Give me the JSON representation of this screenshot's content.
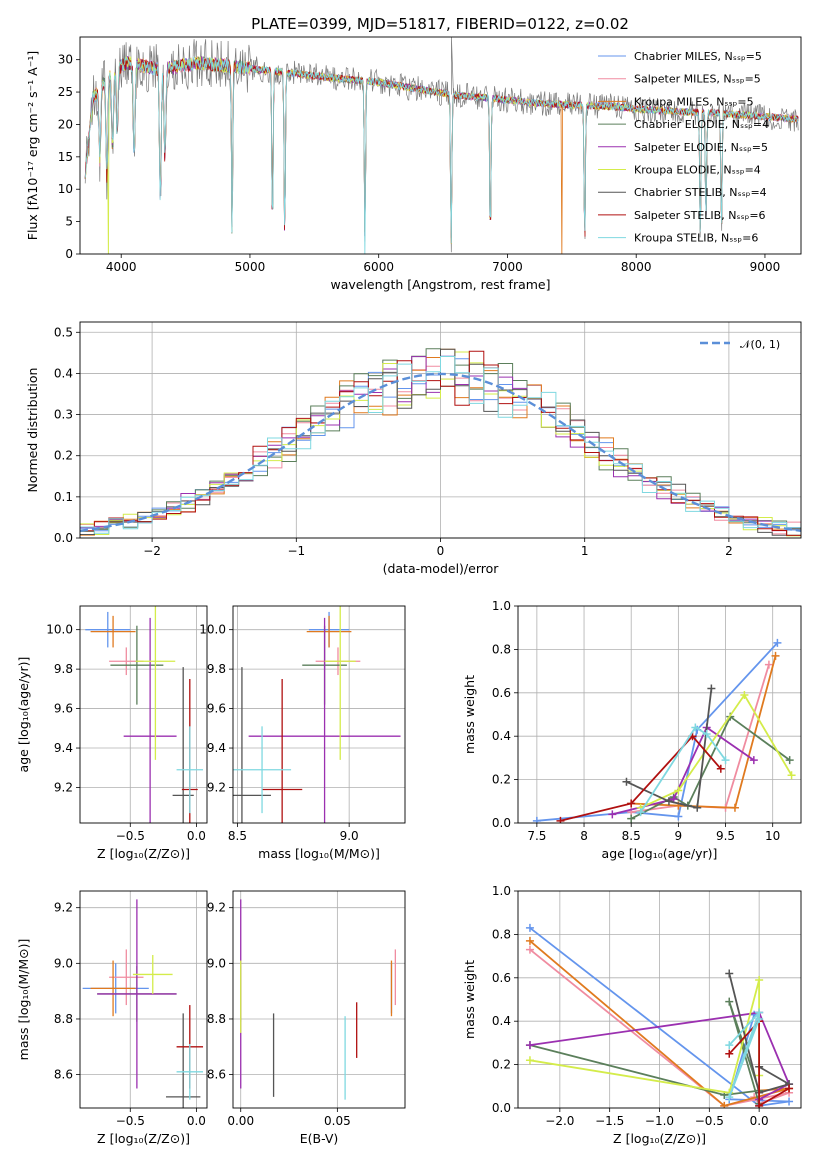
{
  "figure": {
    "title": "PLATE=0399, MJD=51817, FIBERID=0122, z=0.02",
    "models": [
      {
        "name": "Chabrier MILES, Nₛₛₚ=5",
        "color": "#6495ED"
      },
      {
        "name": "Salpeter MILES, Nₛₛₚ=5",
        "color": "#F08CA0"
      },
      {
        "name": "Kroupa MILES, Nₛₛₚ=5",
        "color": "#E07A1F"
      },
      {
        "name": "Chabrier ELODIE, Nₛₛₚ=4",
        "color": "#5B7F5B"
      },
      {
        "name": "Salpeter ELODIE, Nₛₛₚ=5",
        "color": "#9B30B0"
      },
      {
        "name": "Kroupa ELODIE, Nₛₛₚ=4",
        "color": "#D4EC4A"
      },
      {
        "name": "Chabrier STELIB, Nₛₛₚ=4",
        "color": "#555555"
      },
      {
        "name": "Salpeter STELIB, Nₛₛₚ=6",
        "color": "#B01010"
      },
      {
        "name": "Kroupa STELIB, Nₛₛₚ=6",
        "color": "#7FD8E0"
      }
    ]
  },
  "chart_data": [
    {
      "id": "spectrum",
      "type": "line",
      "xlabel": "wavelength [Angstrom, rest frame]",
      "ylabel": "Flux [fλ10⁻¹⁷ erg cm⁻² s⁻¹ A⁻¹]",
      "xlim": [
        3680,
        9280
      ],
      "ylim": [
        0,
        33.5
      ],
      "xticks": [
        4000,
        5000,
        6000,
        7000,
        8000,
        9000
      ],
      "yticks": [
        0,
        5,
        10,
        15,
        20,
        25,
        30
      ],
      "legend_position": "right",
      "continuum": [
        [
          3720,
          12
        ],
        [
          3780,
          24
        ],
        [
          3850,
          26
        ],
        [
          3950,
          28.5
        ],
        [
          4050,
          29.5
        ],
        [
          4300,
          28.5
        ],
        [
          4600,
          29.5
        ],
        [
          4850,
          29
        ],
        [
          5200,
          28.2
        ],
        [
          5600,
          27.3
        ],
        [
          6000,
          26.5
        ],
        [
          6300,
          25.5
        ],
        [
          6600,
          24.5
        ],
        [
          6900,
          24
        ],
        [
          7200,
          23.3
        ],
        [
          7500,
          23
        ],
        [
          7800,
          22.8
        ],
        [
          8000,
          22.4
        ],
        [
          8300,
          22
        ],
        [
          8600,
          21.8
        ],
        [
          9000,
          21.2
        ],
        [
          9260,
          20.8
        ]
      ],
      "absorption": [
        [
          3834,
          11
        ],
        [
          3889,
          15
        ],
        [
          3933,
          12
        ],
        [
          3968,
          10
        ],
        [
          4101,
          14
        ],
        [
          4304,
          20
        ],
        [
          4340,
          14
        ],
        [
          4861,
          25.5
        ],
        [
          5175,
          25
        ],
        [
          5270,
          26
        ],
        [
          5893,
          24
        ],
        [
          6563,
          23
        ],
        [
          6867,
          22
        ],
        [
          7600,
          21.5
        ],
        [
          8498,
          19.5
        ],
        [
          8542,
          17
        ],
        [
          8662,
          18
        ]
      ],
      "drops": [
        {
          "model": 5,
          "x": 3900
        },
        {
          "model": 8,
          "x": 5890
        },
        {
          "model": 5,
          "x": 6790
        },
        {
          "model": 2,
          "x": 7420
        }
      ],
      "spike": {
        "x": 6565,
        "y": 33.5
      }
    },
    {
      "id": "residuals",
      "type": "histogram",
      "xlabel": "(data-model)/error",
      "ylabel": "Normed distribution",
      "xlim": [
        -2.5,
        2.5
      ],
      "ylim": [
        0,
        0.525
      ],
      "xticks": [
        -2,
        -1,
        0,
        1,
        2
      ],
      "yticks": [
        0,
        0.1,
        0.2,
        0.3,
        0.4,
        0.5
      ],
      "bin_width": 0.1,
      "legend": "𝒩(0, 1)",
      "gaussian_color": "#5B8FD8"
    },
    {
      "id": "age-vs-Z",
      "type": "errorbar",
      "xlabel": "Z [log₁₀(Z/Z⊙)]",
      "ylabel": "age  [log₁₀(age/yr)]",
      "xlim": [
        -0.88,
        0.08
      ],
      "ylim": [
        9.02,
        10.12
      ],
      "xticks": [
        -0.5,
        0.0
      ],
      "xticklabels": [
        "−0.5",
        "0.0"
      ],
      "yticks": [
        9.2,
        9.4,
        9.6,
        9.8,
        10.0
      ],
      "points": [
        {
          "m": 0,
          "x": -0.67,
          "xe": 0.17,
          "y": 10.0,
          "ye": 0.09
        },
        {
          "m": 1,
          "x": -0.53,
          "xe": 0.13,
          "y": 9.84,
          "ye": 0.07
        },
        {
          "m": 2,
          "x": -0.63,
          "xe": 0.17,
          "y": 9.99,
          "ye": 0.08
        },
        {
          "m": 3,
          "x": -0.45,
          "xe": 0.2,
          "y": 9.82,
          "ye": 0.2
        },
        {
          "m": 4,
          "x": -0.35,
          "xe": 0.2,
          "y": 9.46,
          "ye": 0.6
        },
        {
          "m": 5,
          "x": -0.31,
          "xe": 0.15,
          "y": 9.84,
          "ye": 0.5
        },
        {
          "m": 6,
          "x": -0.1,
          "xe": 0.08,
          "y": 9.16,
          "ye": 0.65
        },
        {
          "m": 7,
          "x": -0.05,
          "xe": 0.06,
          "y": 9.19,
          "ye": 0.56
        },
        {
          "m": 8,
          "x": -0.05,
          "xe": 0.1,
          "y": 9.29,
          "ye": 0.22
        }
      ]
    },
    {
      "id": "age-vs-mass",
      "type": "errorbar",
      "xlabel": "mass [log₁₀(M/M⊙)]",
      "ylabel": "",
      "xlim": [
        8.48,
        9.25
      ],
      "ylim": [
        9.02,
        10.12
      ],
      "xticks": [
        8.5,
        9.0
      ],
      "xticklabels": [
        "8.5",
        "9.0"
      ],
      "yticks": [
        9.2,
        9.4,
        9.6,
        9.8,
        10.0
      ],
      "points": [
        {
          "m": 0,
          "x": 8.91,
          "xe": 0.09,
          "y": 10.0,
          "ye": 0.09
        },
        {
          "m": 1,
          "x": 8.95,
          "xe": 0.1,
          "y": 9.84,
          "ye": 0.07
        },
        {
          "m": 2,
          "x": 8.91,
          "xe": 0.1,
          "y": 9.99,
          "ye": 0.08
        },
        {
          "m": 3,
          "x": 8.89,
          "xe": 0.1,
          "y": 9.82,
          "ye": 0.2
        },
        {
          "m": 4,
          "x": 8.89,
          "xe": 0.34,
          "y": 9.46,
          "ye": 0.6
        },
        {
          "m": 5,
          "x": 8.96,
          "xe": 0.07,
          "y": 9.84,
          "ye": 0.5
        },
        {
          "m": 6,
          "x": 8.52,
          "xe": 0.13,
          "y": 9.16,
          "ye": 0.65
        },
        {
          "m": 7,
          "x": 8.7,
          "xe": 0.09,
          "y": 9.19,
          "ye": 0.56
        },
        {
          "m": 8,
          "x": 8.61,
          "xe": 0.13,
          "y": 9.29,
          "ye": 0.22
        }
      ]
    },
    {
      "id": "massweight-vs-age",
      "type": "line",
      "xlabel": "age  [log₁₀(age/yr)]",
      "ylabel": "mass weight",
      "xlim": [
        7.3,
        10.3
      ],
      "ylim": [
        0,
        1.0
      ],
      "xticks": [
        7.5,
        8.0,
        8.5,
        9.0,
        9.5,
        10.0
      ],
      "yticks": [
        0,
        0.2,
        0.4,
        0.6,
        0.8,
        1.0
      ],
      "series": [
        {
          "m": 0,
          "x": [
            7.5,
            8.5,
            9.0,
            9.2,
            10.05
          ],
          "y": [
            0.01,
            0.05,
            0.03,
            0.43,
            0.83
          ]
        },
        {
          "m": 1,
          "x": [
            8.5,
            9.0,
            9.5,
            9.96
          ],
          "y": [
            0.05,
            0.08,
            0.07,
            0.73
          ]
        },
        {
          "m": 2,
          "x": [
            8.5,
            9.0,
            9.6,
            10.03
          ],
          "y": [
            0.09,
            0.08,
            0.07,
            0.77
          ]
        },
        {
          "m": 3,
          "x": [
            8.5,
            8.95,
            9.1,
            9.55,
            10.18
          ],
          "y": [
            0.02,
            0.12,
            0.08,
            0.49,
            0.29
          ]
        },
        {
          "m": 4,
          "x": [
            8.3,
            8.95,
            9.3,
            9.8
          ],
          "y": [
            0.04,
            0.11,
            0.44,
            0.29
          ]
        },
        {
          "m": 5,
          "x": [
            8.6,
            9.0,
            9.7,
            10.2
          ],
          "y": [
            0.07,
            0.15,
            0.59,
            0.22
          ]
        },
        {
          "m": 6,
          "x": [
            8.45,
            8.9,
            9.2,
            9.35
          ],
          "y": [
            0.19,
            0.1,
            0.07,
            0.62
          ]
        },
        {
          "m": 7,
          "x": [
            7.75,
            8.5,
            9.15,
            9.45
          ],
          "y": [
            0.01,
            0.09,
            0.4,
            0.25
          ]
        },
        {
          "m": 8,
          "x": [
            8.6,
            9.18,
            9.3,
            9.5
          ],
          "y": [
            0.05,
            0.44,
            0.41,
            0.29
          ]
        }
      ]
    },
    {
      "id": "mass-vs-Z",
      "type": "errorbar",
      "xlabel": "Z [log₁₀(Z/Z⊙)]",
      "ylabel": "mass [log₁₀(M/M⊙)]",
      "xlim": [
        -0.88,
        0.08
      ],
      "ylim": [
        8.48,
        9.26
      ],
      "xticks": [
        -0.5,
        0.0
      ],
      "xticklabels": [
        "−0.5",
        "0.0"
      ],
      "yticks": [
        8.6,
        8.8,
        9.0,
        9.2
      ],
      "points": [
        {
          "m": 0,
          "x": -0.61,
          "xe": 0.25,
          "y": 8.91,
          "ye": 0.09
        },
        {
          "m": 1,
          "x": -0.53,
          "xe": 0.13,
          "y": 8.95,
          "ye": 0.1
        },
        {
          "m": 2,
          "x": -0.63,
          "xe": 0.17,
          "y": 8.91,
          "ye": 0.1
        },
        {
          "m": 3,
          "x": -0.45,
          "xe": 0.3,
          "y": 8.89,
          "ye": 0.1
        },
        {
          "m": 4,
          "x": -0.45,
          "xe": 0.3,
          "y": 8.89,
          "ye": 0.34
        },
        {
          "m": 5,
          "x": -0.33,
          "xe": 0.15,
          "y": 8.96,
          "ye": 0.07
        },
        {
          "m": 6,
          "x": -0.1,
          "xe": 0.13,
          "y": 8.52,
          "ye": 0.3
        },
        {
          "m": 7,
          "x": -0.05,
          "xe": 0.1,
          "y": 8.7,
          "ye": 0.15
        },
        {
          "m": 8,
          "x": -0.05,
          "xe": 0.1,
          "y": 8.61,
          "ye": 0.1
        }
      ]
    },
    {
      "id": "mass-vs-ebv",
      "type": "errorbar",
      "xlabel": "E(B-V)",
      "ylabel": "",
      "xlim": [
        -0.004,
        0.085
      ],
      "ylim": [
        8.48,
        9.26
      ],
      "xticks": [
        0.0,
        0.05
      ],
      "xticklabels": [
        "0.00",
        "0.05"
      ],
      "yticks": [
        8.6,
        8.8,
        9.0,
        9.2
      ],
      "points": [
        {
          "m": 0,
          "x": 0.078,
          "xe": 0,
          "y": 8.91,
          "ye": 0.09
        },
        {
          "m": 1,
          "x": 0.08,
          "xe": 0,
          "y": 8.95,
          "ye": 0.1
        },
        {
          "m": 2,
          "x": 0.078,
          "xe": 0,
          "y": 8.91,
          "ye": 0.1
        },
        {
          "m": 3,
          "x": 0.0,
          "xe": 0,
          "y": 8.89,
          "ye": 0.1
        },
        {
          "m": 4,
          "x": 0.0,
          "xe": 0,
          "y": 8.89,
          "ye": 0.34
        },
        {
          "m": 5,
          "x": 0.0,
          "xe": 0,
          "y": 8.88,
          "ye": 0.13
        },
        {
          "m": 6,
          "x": 0.017,
          "xe": 0,
          "y": 8.67,
          "ye": 0.15
        },
        {
          "m": 7,
          "x": 0.06,
          "xe": 0,
          "y": 8.76,
          "ye": 0.1
        },
        {
          "m": 8,
          "x": 0.054,
          "xe": 0,
          "y": 8.66,
          "ye": 0.15
        }
      ]
    },
    {
      "id": "massweight-vs-Z",
      "type": "line",
      "xlabel": "Z [log₁₀(Z/Z⊙)]",
      "ylabel": "mass weight",
      "xlim": [
        -2.42,
        0.42
      ],
      "ylim": [
        0,
        1.0
      ],
      "xticks": [
        -2.0,
        -1.5,
        -1.0,
        -0.5,
        0.0
      ],
      "xticklabels": [
        "−2.0",
        "−1.5",
        "−1.0",
        "−0.5",
        "0.0"
      ],
      "yticks": [
        0,
        0.2,
        0.4,
        0.6,
        0.8,
        1.0
      ],
      "series": [
        {
          "m": 0,
          "x": [
            -2.3,
            0.0,
            0.3,
            -0.3,
            -0.05
          ],
          "y": [
            0.83,
            0.01,
            0.03,
            0.04,
            0.43
          ]
        },
        {
          "m": 1,
          "x": [
            -2.3,
            -0.35,
            0.3,
            0.0,
            -0.05
          ],
          "y": [
            0.73,
            0.01,
            0.07,
            0.02,
            0.05
          ]
        },
        {
          "m": 2,
          "x": [
            -2.3,
            -0.35,
            0.3,
            0.0
          ],
          "y": [
            0.77,
            0.01,
            0.09,
            0.08
          ]
        },
        {
          "m": 3,
          "x": [
            -2.3,
            -0.35,
            0.0,
            -0.3,
            0.0
          ],
          "y": [
            0.29,
            0.06,
            0.08,
            0.49,
            0.02
          ]
        },
        {
          "m": 4,
          "x": [
            -2.3,
            0.0,
            0.3,
            0.0
          ],
          "y": [
            0.29,
            0.44,
            0.11,
            0.04
          ]
        },
        {
          "m": 5,
          "x": [
            -2.3,
            -0.3,
            0.0,
            0.0
          ],
          "y": [
            0.22,
            0.07,
            0.59,
            0.15
          ]
        },
        {
          "m": 6,
          "x": [
            -0.3,
            0.0,
            0.3,
            0.0
          ],
          "y": [
            0.62,
            0.07,
            0.11,
            0.19
          ]
        },
        {
          "m": 7,
          "x": [
            -0.3,
            0.0,
            0.0,
            0.3
          ],
          "y": [
            0.25,
            0.4,
            0.01,
            0.09
          ]
        },
        {
          "m": 8,
          "x": [
            -0.3,
            0.0,
            -0.3,
            0.0
          ],
          "y": [
            0.29,
            0.44,
            0.05,
            0.41
          ]
        }
      ]
    }
  ]
}
